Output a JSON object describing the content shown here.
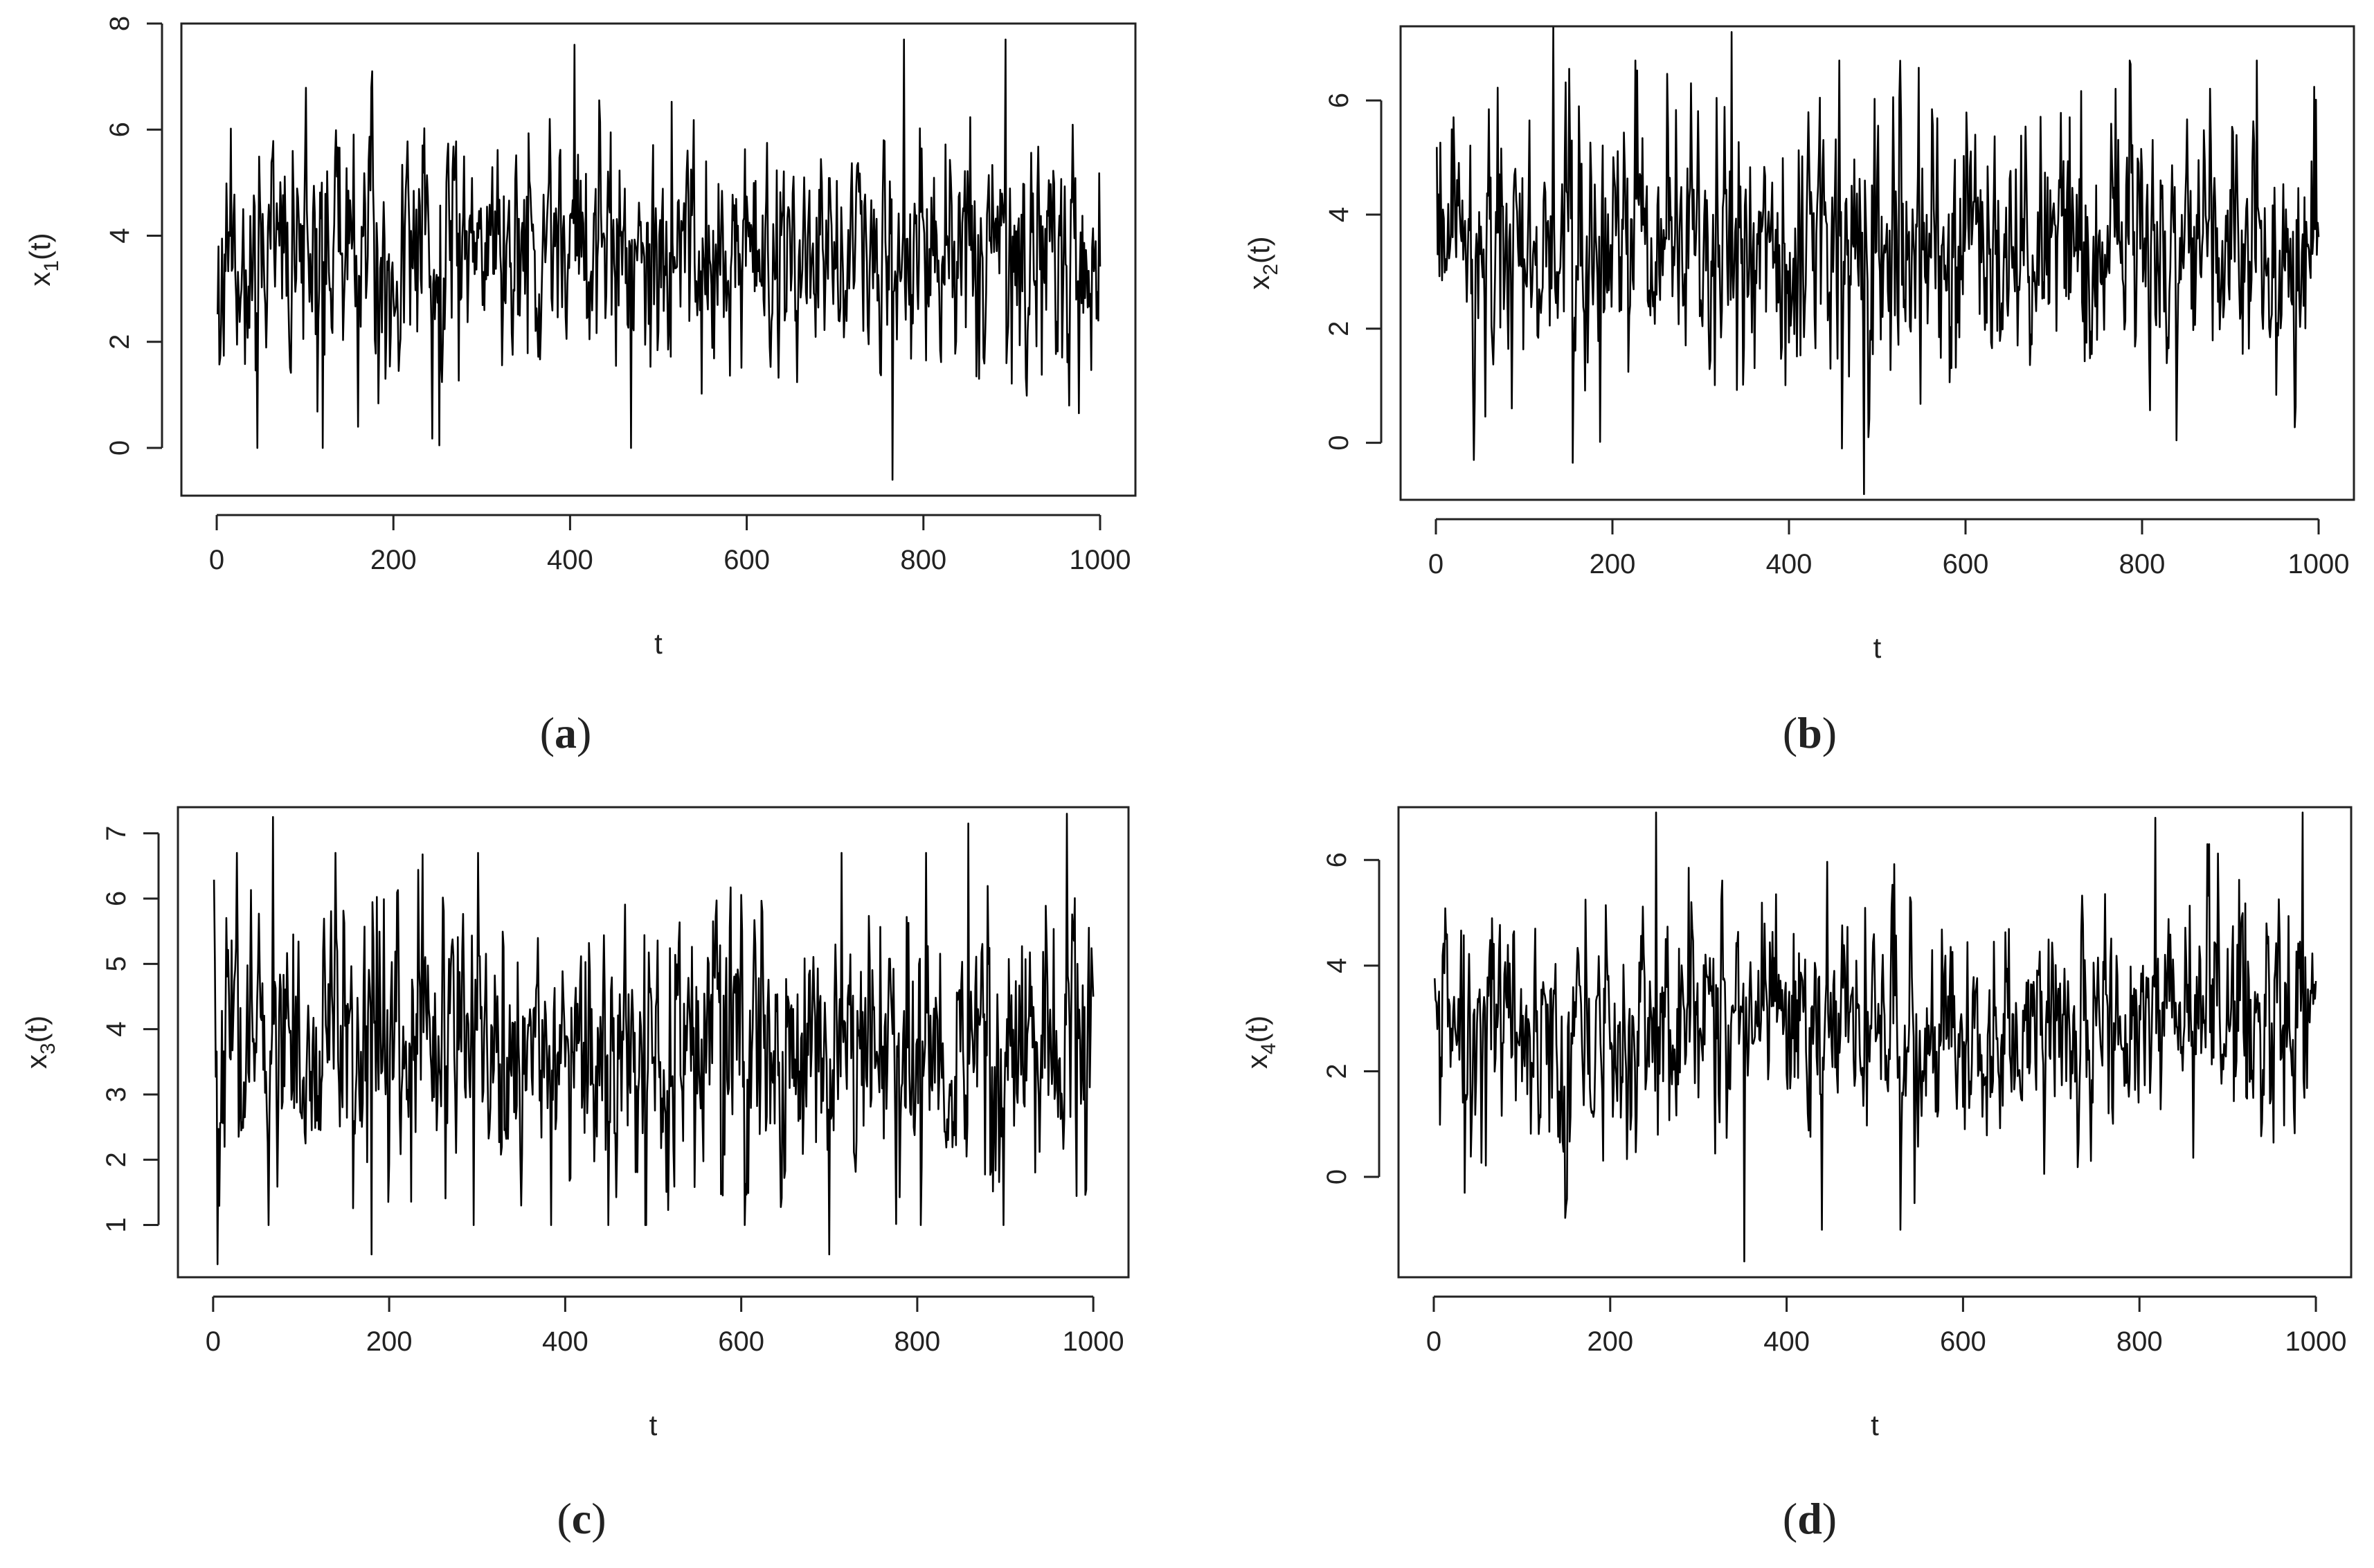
{
  "figure": {
    "panels": [
      {
        "caption_letter": "a",
        "ylabel_main": "x",
        "ylabel_sub": "1",
        "ylabel_end": "(t)",
        "xlabel": "t",
        "xticks": [
          "0",
          "200",
          "400",
          "600",
          "800",
          "1000"
        ],
        "yticks": [
          "0",
          "2",
          "4",
          "6",
          "8"
        ]
      },
      {
        "caption_letter": "b",
        "ylabel_main": "x",
        "ylabel_sub": "2",
        "ylabel_end": "(t)",
        "xlabel": "t",
        "xticks": [
          "0",
          "200",
          "400",
          "600",
          "800",
          "1000"
        ],
        "yticks": [
          "0",
          "2",
          "4",
          "6"
        ]
      },
      {
        "caption_letter": "c",
        "ylabel_main": "x",
        "ylabel_sub": "3",
        "ylabel_end": "(t)",
        "xlabel": "t",
        "xticks": [
          "0",
          "200",
          "400",
          "600",
          "800",
          "1000"
        ],
        "yticks": [
          "1",
          "2",
          "3",
          "4",
          "5",
          "6",
          "7"
        ]
      },
      {
        "caption_letter": "d",
        "ylabel_main": "x",
        "ylabel_sub": "4",
        "ylabel_end": "(t)",
        "xlabel": "t",
        "xticks": [
          "0",
          "200",
          "400",
          "600",
          "800",
          "1000"
        ],
        "yticks": [
          "0",
          "2",
          "4",
          "6"
        ]
      }
    ]
  },
  "chart_data": [
    {
      "type": "line",
      "xlabel": "t",
      "ylabel": "x1(t)",
      "xlim": [
        0,
        1000
      ],
      "ylim": [
        -0.9,
        8.0
      ],
      "grid": false,
      "line_color": "#000000",
      "x": [
        1,
        1000
      ],
      "y_summary": {
        "mean": 3.6,
        "min": -0.6,
        "max": 7.7,
        "n_points": 1000
      },
      "notable_points": [
        {
          "t": 405,
          "value": 7.6
        },
        {
          "t": 778,
          "value": 7.7
        },
        {
          "t": 893,
          "value": 7.7
        },
        {
          "t": 765,
          "value": -0.6
        },
        {
          "t": 252,
          "value": 0.05
        },
        {
          "t": 160,
          "value": 0.4
        }
      ]
    },
    {
      "type": "line",
      "xlabel": "t",
      "ylabel": "x2(t)",
      "xlim": [
        0,
        1000
      ],
      "ylim": [
        -1.0,
        7.3
      ],
      "grid": false,
      "line_color": "#000000",
      "x": [
        1,
        1000
      ],
      "y_summary": {
        "mean": 3.3,
        "min": -0.9,
        "max": 7.3,
        "n_points": 1000
      },
      "notable_points": [
        {
          "t": 133,
          "value": 7.3
        },
        {
          "t": 335,
          "value": 7.2
        },
        {
          "t": 485,
          "value": -0.9
        },
        {
          "t": 155,
          "value": -0.35
        },
        {
          "t": 930,
          "value": 6.7
        }
      ]
    },
    {
      "type": "line",
      "xlabel": "t",
      "ylabel": "x3(t)",
      "xlim": [
        0,
        1000
      ],
      "ylim": [
        0.2,
        7.4
      ],
      "grid": false,
      "line_color": "#000000",
      "x": [
        1,
        1000
      ],
      "y_summary": {
        "mean": 3.7,
        "min": 0.4,
        "max": 7.3,
        "n_points": 1000
      },
      "notable_points": [
        {
          "t": 68,
          "value": 7.25
        },
        {
          "t": 970,
          "value": 7.3
        },
        {
          "t": 858,
          "value": 7.15
        },
        {
          "t": 5,
          "value": 0.4
        },
        {
          "t": 700,
          "value": 0.55
        },
        {
          "t": 180,
          "value": 0.55
        }
      ]
    },
    {
      "type": "line",
      "xlabel": "t",
      "ylabel": "x4(t)",
      "xlim": [
        0,
        1000
      ],
      "ylim": [
        -1.9,
        7.0
      ],
      "grid": false,
      "line_color": "#000000",
      "x": [
        1,
        1000
      ],
      "y_summary": {
        "mean": 2.8,
        "min": -1.6,
        "max": 6.9,
        "n_points": 1000
      },
      "notable_points": [
        {
          "t": 252,
          "value": 6.9
        },
        {
          "t": 818,
          "value": 6.8
        },
        {
          "t": 985,
          "value": 6.9
        },
        {
          "t": 352,
          "value": -1.6
        },
        {
          "t": 35,
          "value": -0.3
        }
      ]
    }
  ]
}
